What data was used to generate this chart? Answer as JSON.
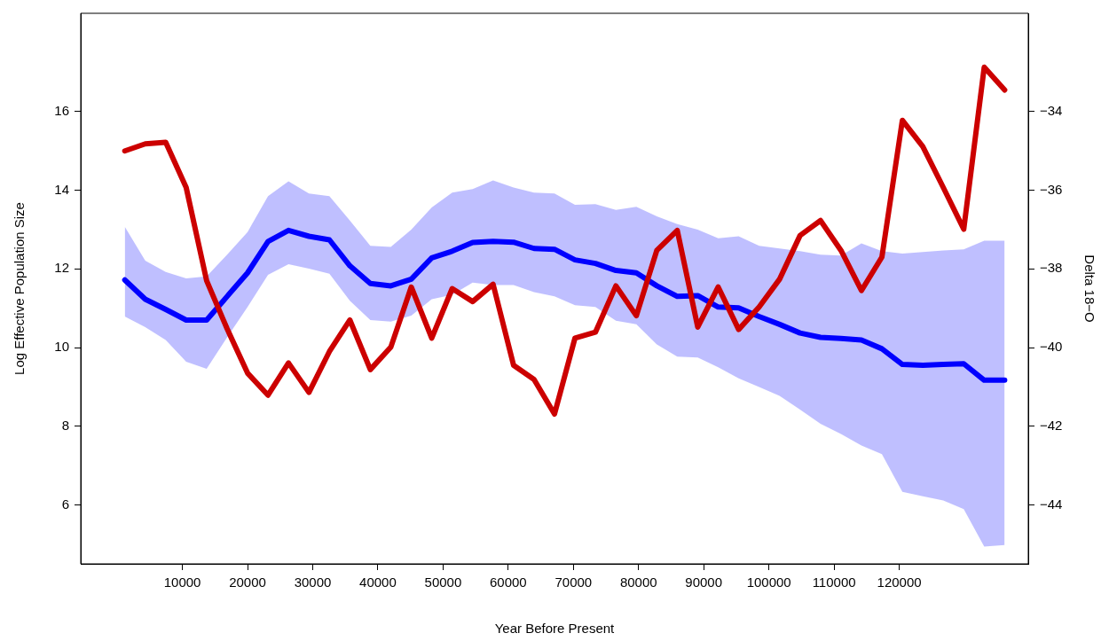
{
  "chart_data": {
    "type": "line",
    "xlabel": "Year Before Present",
    "ylabel": "Log Effective Population Size",
    "y2label": "Delta 18−O",
    "x": [
      1160,
      4300,
      7440,
      10580,
      13720,
      16860,
      20000,
      23140,
      26280,
      29420,
      32560,
      35700,
      38840,
      41980,
      45120,
      48260,
      51400,
      54540,
      57680,
      60820,
      63960,
      67100,
      70240,
      73380,
      76520,
      79660,
      82800,
      85940,
      89080,
      92220,
      95360,
      98500,
      101640,
      104780,
      107920,
      111060,
      114200,
      117340,
      120480,
      123620,
      126760,
      129900,
      133040,
      136180
    ],
    "series": [
      {
        "color": "#0000ff",
        "values": [
          11.72,
          11.23,
          10.97,
          10.7,
          10.7,
          11.3,
          11.9,
          12.7,
          12.98,
          12.83,
          12.74,
          12.08,
          11.63,
          11.57,
          11.74,
          12.28,
          12.45,
          12.67,
          12.7,
          12.68,
          12.52,
          12.5,
          12.23,
          12.14,
          11.96,
          11.9,
          11.57,
          11.3,
          11.32,
          11.03,
          11.01,
          10.79,
          10.59,
          10.37,
          10.26,
          10.23,
          10.19,
          9.97,
          9.57,
          9.55,
          9.57,
          9.59,
          9.17,
          9.17
        ],
        "upper": [
          13.07,
          12.21,
          11.92,
          11.76,
          11.81,
          12.36,
          12.94,
          13.85,
          14.23,
          13.92,
          13.85,
          13.23,
          12.59,
          12.56,
          13.0,
          13.56,
          13.94,
          14.03,
          14.25,
          14.07,
          13.94,
          13.92,
          13.63,
          13.65,
          13.5,
          13.58,
          13.34,
          13.14,
          13.0,
          12.78,
          12.83,
          12.59,
          12.52,
          12.45,
          12.36,
          12.34,
          12.65,
          12.45,
          12.39,
          12.43,
          12.47,
          12.5,
          12.72,
          12.72
        ],
        "lower": [
          10.79,
          10.52,
          10.19,
          9.64,
          9.46,
          10.26,
          11.03,
          11.85,
          12.12,
          12.01,
          11.88,
          11.19,
          10.7,
          10.66,
          10.81,
          11.23,
          11.34,
          11.65,
          11.59,
          11.59,
          11.41,
          11.3,
          11.08,
          11.03,
          10.68,
          10.59,
          10.08,
          9.77,
          9.75,
          9.5,
          9.22,
          9.0,
          8.77,
          8.42,
          8.06,
          7.8,
          7.51,
          7.29,
          6.33,
          6.22,
          6.11,
          5.89,
          4.94,
          4.98
        ]
      },
      {
        "color": "#cc0000",
        "axis": "y2",
        "values": [
          -35.0,
          -34.82,
          -34.78,
          -35.93,
          -38.3,
          -39.52,
          -40.65,
          -41.21,
          -40.39,
          -41.14,
          -40.1,
          -39.3,
          -40.56,
          -39.99,
          -38.46,
          -39.76,
          -38.5,
          -38.83,
          -38.39,
          -40.45,
          -40.81,
          -41.69,
          -39.76,
          -39.61,
          -38.43,
          -39.19,
          -37.53,
          -37.02,
          -39.48,
          -38.46,
          -39.54,
          -38.97,
          -38.26,
          -37.15,
          -36.77,
          -37.53,
          -38.55,
          -37.7,
          -34.22,
          -34.89,
          -35.93,
          -36.99,
          -32.87,
          -33.45
        ]
      }
    ],
    "xlim": [
      -5600,
      139800
    ],
    "xticks": [
      10000,
      20000,
      30000,
      40000,
      50000,
      60000,
      70000,
      80000,
      90000,
      100000,
      110000,
      120000
    ],
    "ylim": [
      4.5,
      18.5
    ],
    "yticks": [
      6,
      8,
      10,
      12,
      14,
      16
    ],
    "y2lim": [
      -45.5,
      -31.5
    ],
    "y2ticks": [
      {
        "value": -44,
        "label": "−44"
      },
      {
        "value": -42,
        "label": "−42"
      },
      {
        "value": -40,
        "label": "−40"
      },
      {
        "value": -38,
        "label": "−38"
      },
      {
        "value": -36,
        "label": "−36"
      },
      {
        "value": -34,
        "label": "−34"
      }
    ],
    "grid": false,
    "line_style": "solid",
    "marker": "none"
  }
}
